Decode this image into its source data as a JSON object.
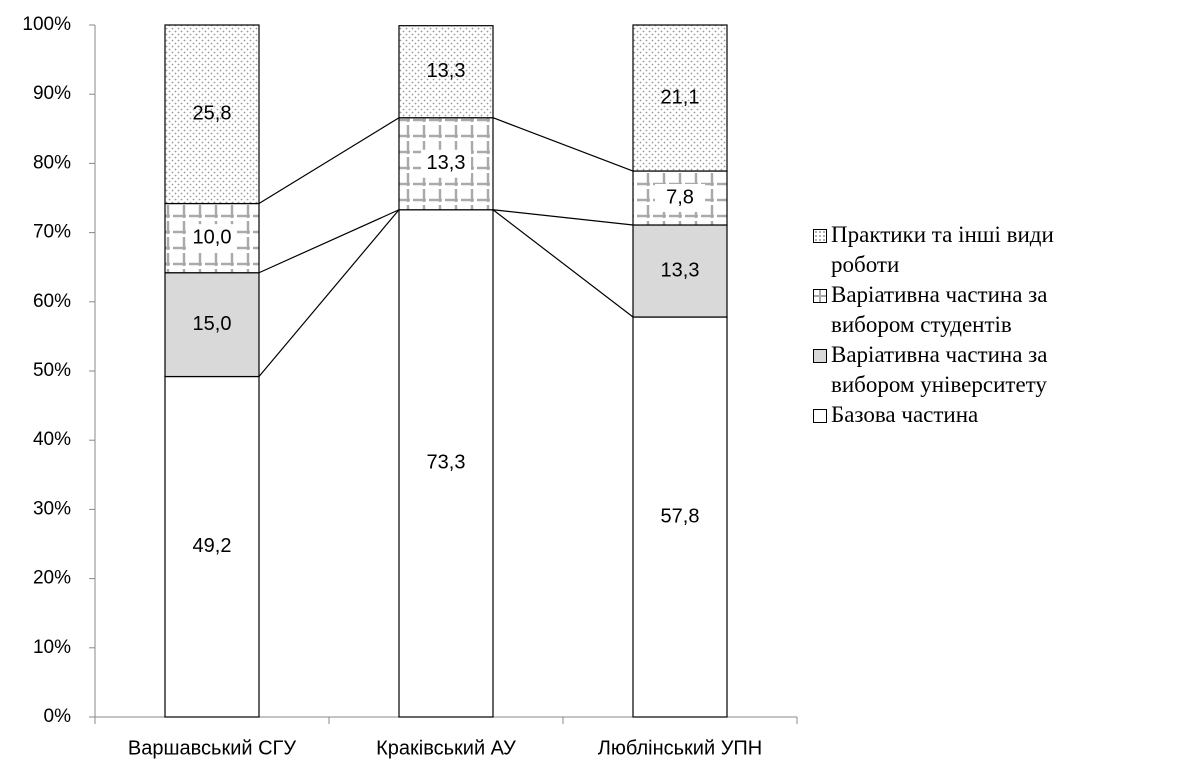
{
  "chart_data": {
    "type": "stacked_bar",
    "categories": [
      "Варшавський СГУ",
      "Краківський АУ",
      "Люблінський УПН"
    ],
    "series": [
      {
        "name": "Базова частина",
        "color": "#ffffff",
        "pattern": "solid",
        "values": [
          49.2,
          73.3,
          57.8
        ],
        "value_labels": [
          "49,2",
          "73,3",
          "57,8"
        ]
      },
      {
        "name": "Варіативна частина за вибором університету",
        "color": "#d9d9d9",
        "pattern": "solid",
        "values": [
          15.0,
          0,
          13.3
        ],
        "value_labels": [
          "15,0",
          null,
          "13,3"
        ]
      },
      {
        "name": "Варіативна частина за вибором студентів",
        "color": "#a6a6a6",
        "pattern": "grid",
        "values": [
          10.0,
          13.3,
          7.8
        ],
        "value_labels": [
          "10,0",
          "13,3",
          "7,8"
        ]
      },
      {
        "name": "Практики та інші види роботи",
        "color": "#a6a6a6",
        "pattern": "dots",
        "values": [
          25.8,
          13.3,
          21.1
        ],
        "value_labels": [
          "25,8",
          "13,3",
          "21,1"
        ]
      }
    ],
    "ylim": [
      0,
      100
    ],
    "yticks": [
      {
        "value": 0,
        "label": "0%"
      },
      {
        "value": 10,
        "label": "10%"
      },
      {
        "value": 20,
        "label": "20%"
      },
      {
        "value": 30,
        "label": "30%"
      },
      {
        "value": 40,
        "label": "40%"
      },
      {
        "value": 50,
        "label": "50%"
      },
      {
        "value": 60,
        "label": "60%"
      },
      {
        "value": 70,
        "label": "70%"
      },
      {
        "value": 80,
        "label": "80%"
      },
      {
        "value": 90,
        "label": "90%"
      },
      {
        "value": 100,
        "label": "100%"
      }
    ],
    "series_lines": true,
    "legend": "right"
  }
}
